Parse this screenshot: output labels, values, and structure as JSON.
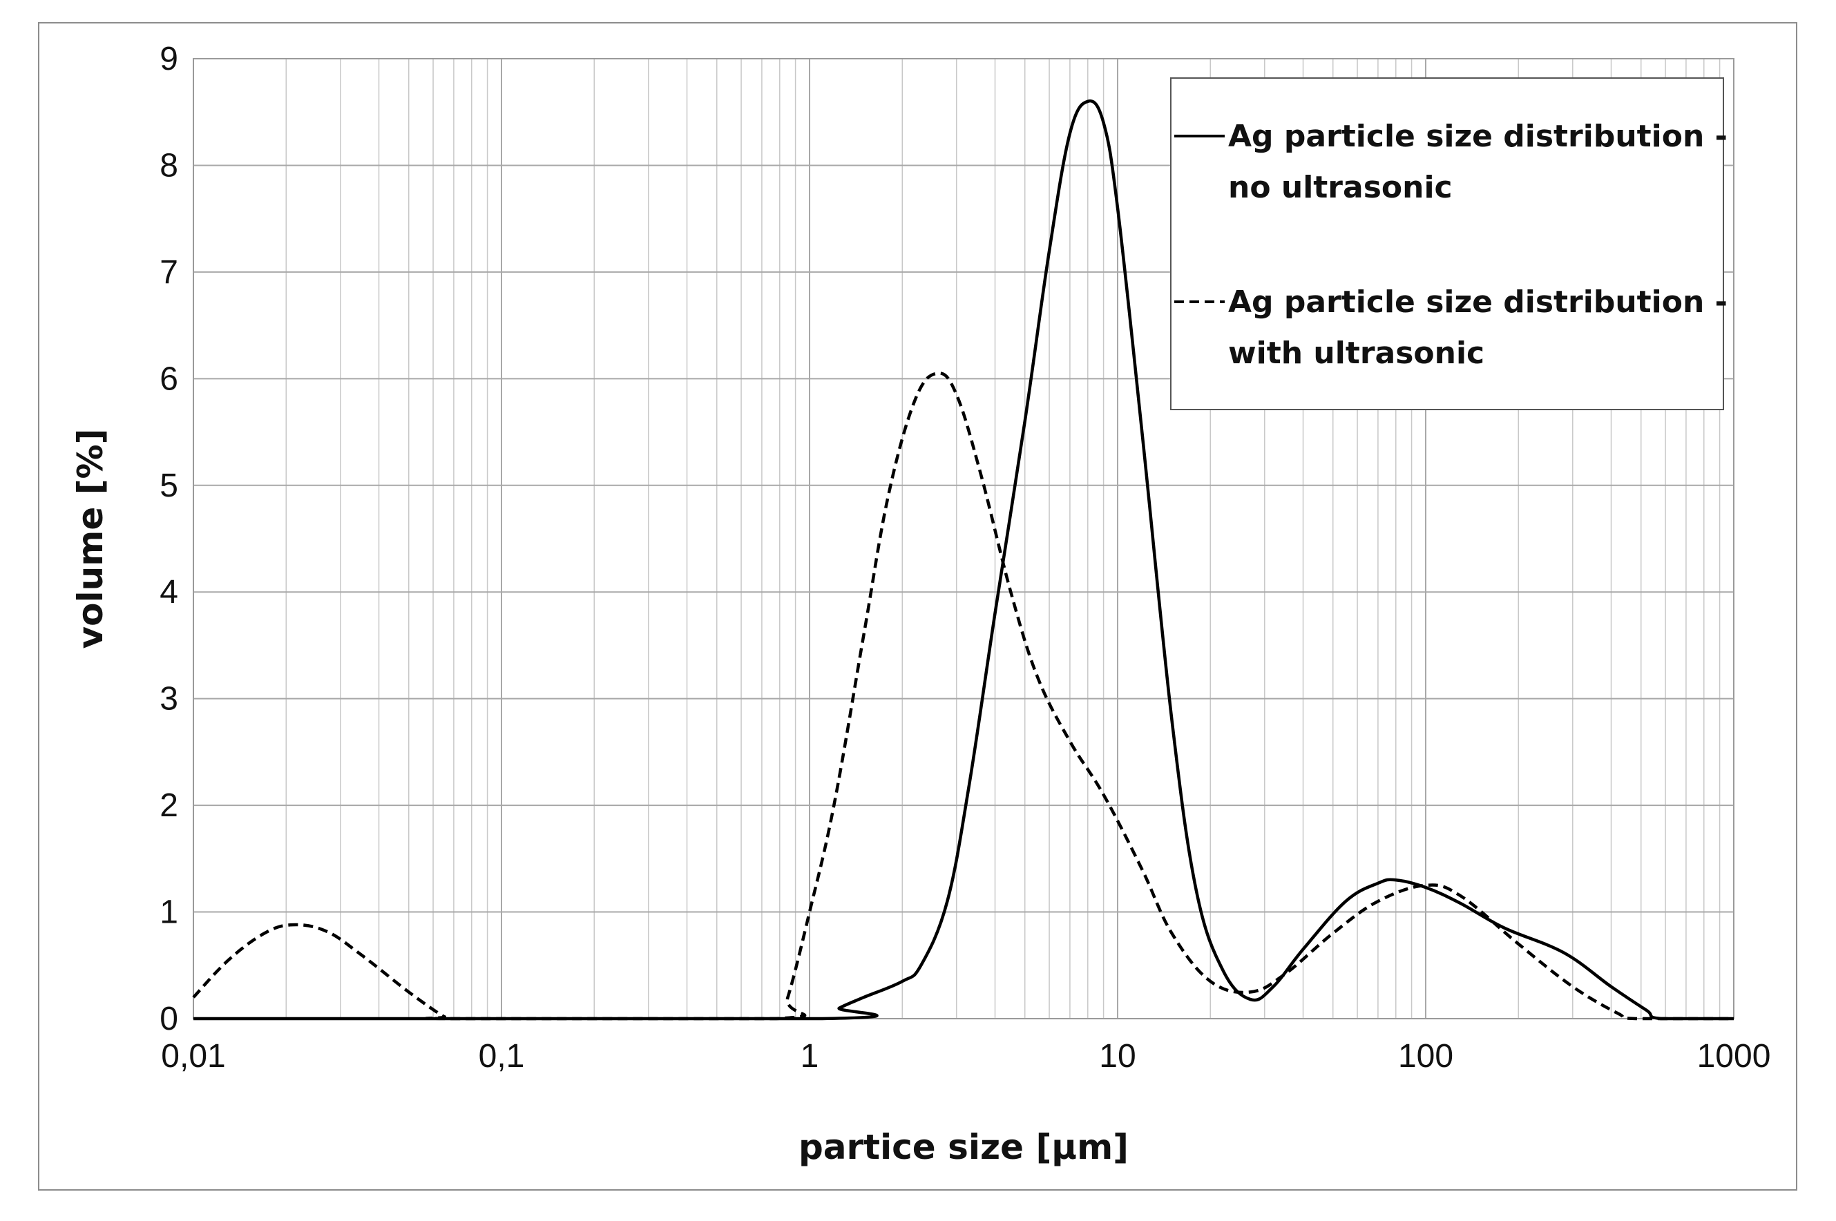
{
  "chart_data": {
    "type": "line",
    "xscale": "log",
    "xlabel": "partice size [µm]",
    "ylabel": "volume [%]",
    "xlim": [
      0.01,
      1000
    ],
    "ylim": [
      0,
      9
    ],
    "xticks": [
      "0,01",
      "0,1",
      "1",
      "10",
      "100",
      "1000"
    ],
    "yticks": [
      "0",
      "1",
      "2",
      "3",
      "4",
      "5",
      "6",
      "7",
      "8",
      "9"
    ],
    "grid": true,
    "legend_position": "top-right",
    "series": [
      {
        "name": "Ag particle size distribution - no ultrasonic",
        "name_lines": [
          "Ag particle size distribution -",
          "no ultrasonic"
        ],
        "style": "solid",
        "color": "#000000",
        "points": [
          [
            0.01,
            0
          ],
          [
            1.1,
            0
          ],
          [
            1.25,
            0.1
          ],
          [
            1.5,
            0.2
          ],
          [
            2.0,
            0.35
          ],
          [
            2.3,
            0.5
          ],
          [
            2.8,
            1.1
          ],
          [
            3.3,
            2.2
          ],
          [
            4.0,
            3.8
          ],
          [
            5.0,
            5.6
          ],
          [
            6.0,
            7.2
          ],
          [
            7.0,
            8.3
          ],
          [
            8.0,
            8.6
          ],
          [
            9.0,
            8.4
          ],
          [
            10.0,
            7.6
          ],
          [
            12.0,
            5.5
          ],
          [
            15.0,
            2.8
          ],
          [
            18.0,
            1.2
          ],
          [
            22.0,
            0.45
          ],
          [
            27.0,
            0.18
          ],
          [
            32.0,
            0.3
          ],
          [
            40.0,
            0.65
          ],
          [
            55.0,
            1.1
          ],
          [
            70.0,
            1.27
          ],
          [
            80.0,
            1.3
          ],
          [
            100.0,
            1.23
          ],
          [
            130.0,
            1.08
          ],
          [
            180.0,
            0.85
          ],
          [
            280.0,
            0.62
          ],
          [
            400.0,
            0.3
          ],
          [
            520.0,
            0.08
          ],
          [
            580.0,
            0
          ],
          [
            1000.0,
            0
          ]
        ]
      },
      {
        "name": "Ag particle size distribution - with ultrasonic",
        "name_lines": [
          "Ag particle size distribution -",
          "with ultrasonic"
        ],
        "style": "dashed",
        "color": "#000000",
        "points": [
          [
            0.01,
            0.2
          ],
          [
            0.013,
            0.55
          ],
          [
            0.017,
            0.8
          ],
          [
            0.021,
            0.88
          ],
          [
            0.027,
            0.82
          ],
          [
            0.035,
            0.6
          ],
          [
            0.05,
            0.25
          ],
          [
            0.065,
            0.02
          ],
          [
            0.07,
            0
          ],
          [
            0.78,
            0
          ],
          [
            0.85,
            0.2
          ],
          [
            1.0,
            1.0
          ],
          [
            1.2,
            2.0
          ],
          [
            1.5,
            3.6
          ],
          [
            1.8,
            4.9
          ],
          [
            2.2,
            5.8
          ],
          [
            2.6,
            6.05
          ],
          [
            3.0,
            5.85
          ],
          [
            3.6,
            5.1
          ],
          [
            4.5,
            4.0
          ],
          [
            5.5,
            3.2
          ],
          [
            7.0,
            2.6
          ],
          [
            9.0,
            2.1
          ],
          [
            12.0,
            1.4
          ],
          [
            15.0,
            0.8
          ],
          [
            20.0,
            0.35
          ],
          [
            27.0,
            0.25
          ],
          [
            35.0,
            0.42
          ],
          [
            50.0,
            0.8
          ],
          [
            70.0,
            1.1
          ],
          [
            100.0,
            1.25
          ],
          [
            130.0,
            1.15
          ],
          [
            200.0,
            0.7
          ],
          [
            300.0,
            0.3
          ],
          [
            420.0,
            0.05
          ],
          [
            480.0,
            0
          ],
          [
            1000.0,
            0
          ]
        ]
      }
    ]
  }
}
